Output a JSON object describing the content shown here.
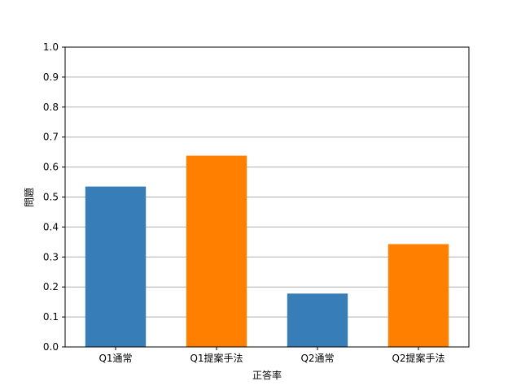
{
  "chart_data": {
    "type": "bar",
    "categories": [
      "Q1通常",
      "Q1提案手法",
      "Q2通常",
      "Q2提案手法"
    ],
    "values": [
      0.535,
      0.638,
      0.178,
      0.343
    ],
    "bar_colors": [
      "#377eb8",
      "#ff7f00",
      "#377eb8",
      "#ff7f00"
    ],
    "xlabel": "正答率",
    "ylabel": "問題",
    "ylim": [
      0,
      1.0
    ],
    "yticks": [
      "0.0",
      "0.1",
      "0.2",
      "0.3",
      "0.4",
      "0.5",
      "0.6",
      "0.7",
      "0.8",
      "0.9",
      "1.0"
    ],
    "grid": "y-major",
    "grid_color": "#b0b0b0"
  }
}
